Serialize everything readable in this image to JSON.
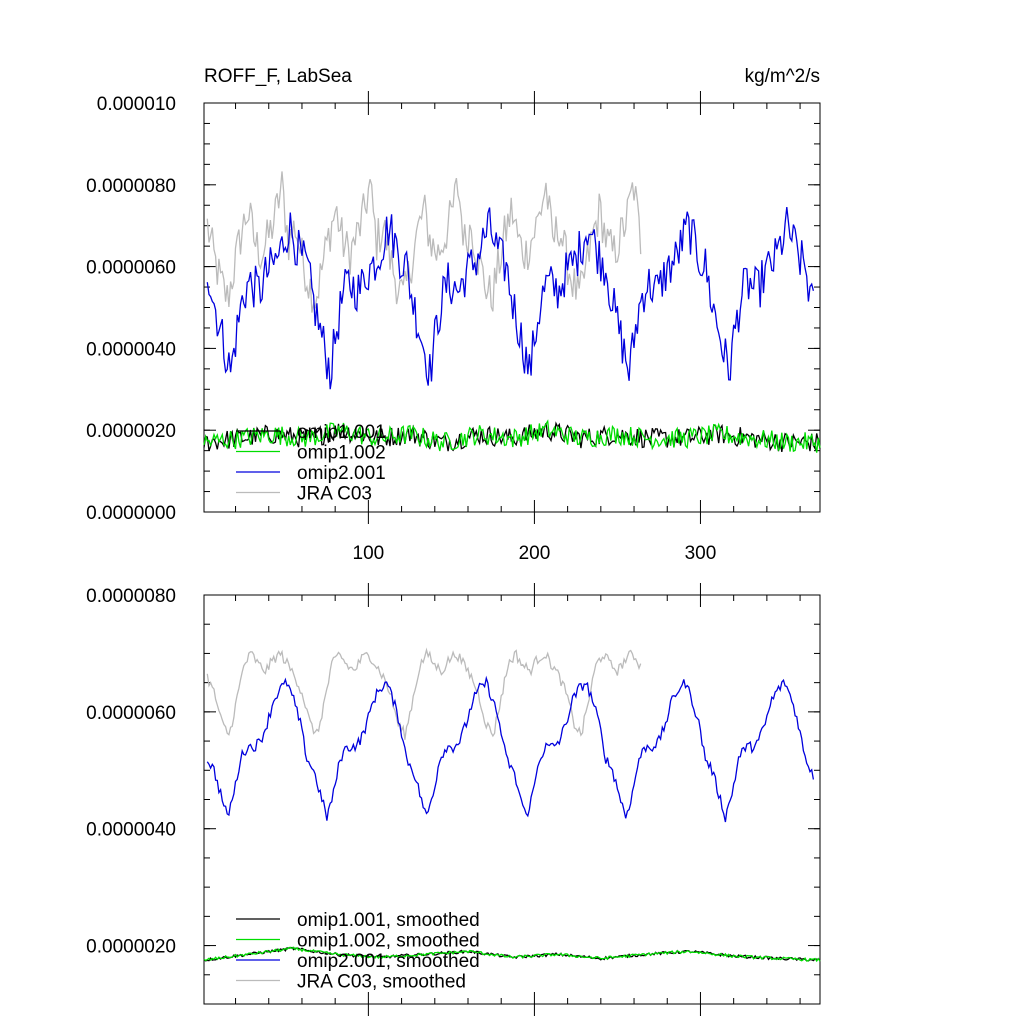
{
  "chart_data": [
    {
      "type": "line",
      "title": "ROFF_F, LabSea",
      "units": "kg/m^2/s",
      "xlim": [
        1,
        372
      ],
      "ylim": [
        0.0,
        1e-05
      ],
      "x_ticks": [
        100,
        200,
        300
      ],
      "x_tick_labels": [
        "100",
        "200",
        "300"
      ],
      "y_ticks": [
        0.0,
        2e-06,
        4e-06,
        6e-06,
        8e-06,
        1e-05
      ],
      "y_tick_labels": [
        "0.0000000",
        "0.0000020",
        "0.0000040",
        "0.0000060",
        "0.0000080",
        "0.000010"
      ],
      "legend_position": "bottom-left",
      "series": [
        {
          "name": "omip1.001",
          "color": "#000000",
          "data": "hidden-behind-omip1.002",
          "values": [
            1.7e-06,
            1.8e-06,
            1.9e-06,
            1.8e-06,
            2e-06,
            1.8e-06,
            1.9e-06,
            1.7e-06,
            1.9e-06,
            1.8e-06,
            2e-06,
            1.8e-06,
            1.9e-06,
            1.8e-06,
            1.8e-06,
            1.9e-06,
            1.8e-06,
            1.7e-06
          ]
        },
        {
          "name": "omip1.002",
          "color": "#00dd00",
          "values": [
            1.7e-06,
            1.8e-06,
            1.9e-06,
            1.8e-06,
            2e-06,
            1.8e-06,
            1.9e-06,
            1.7e-06,
            1.9e-06,
            1.8e-06,
            2e-06,
            1.8e-06,
            1.9e-06,
            1.8e-06,
            1.8e-06,
            1.9e-06,
            1.8e-06,
            1.7e-06
          ]
        },
        {
          "name": "omip2.001",
          "color": "#0000dd",
          "cycle_length": 60,
          "cycle_profile": [
            6e-06,
            5.2e-06,
            4.6e-06,
            4e-06,
            3.4e-06,
            4.4e-06,
            5.2e-06,
            5.6e-06,
            5.5e-06,
            5.4e-06,
            5.8e-06,
            6e-06,
            6.2e-06,
            6.6e-06,
            7e-06,
            6.6e-06,
            6.2e-06
          ],
          "n_points": 366
        },
        {
          "name": "JRA C03",
          "color": "#bbbbbb",
          "cycle_length": 53,
          "cycle_profile": [
            7e-06,
            6.2e-06,
            5.6e-06,
            5.2e-06,
            6e-06,
            6.8e-06,
            7.4e-06,
            6.6e-06,
            6.3e-06,
            6.7e-06,
            7.2e-06,
            8e-06,
            6.6e-06
          ],
          "n_points": 262
        }
      ]
    },
    {
      "type": "line",
      "xlim": [
        1,
        372
      ],
      "ylim": [
        1e-06,
        8e-06
      ],
      "y_ticks": [
        2e-06,
        4e-06,
        6e-06,
        8e-06
      ],
      "y_tick_labels": [
        "0.0000020",
        "0.0000040",
        "0.0000060",
        "0.0000080"
      ],
      "legend_position": "bottom-left",
      "series": [
        {
          "name": "omip1.001, smoothed",
          "color": "#000000",
          "values": [
            1.75e-06,
            1.85e-06,
            1.95e-06,
            1.85e-06,
            1.8e-06,
            1.85e-06,
            1.9e-06,
            1.8e-06,
            1.85e-06,
            1.78e-06,
            1.85e-06,
            1.9e-06,
            1.82e-06,
            1.78e-06
          ]
        },
        {
          "name": "omip1.002, smoothed",
          "color": "#00dd00",
          "values": [
            1.75e-06,
            1.85e-06,
            1.95e-06,
            1.85e-06,
            1.8e-06,
            1.85e-06,
            1.9e-06,
            1.8e-06,
            1.85e-06,
            1.78e-06,
            1.85e-06,
            1.9e-06,
            1.82e-06,
            1.78e-06
          ]
        },
        {
          "name": "omip2.001, smoothed",
          "color": "#0000dd",
          "cycle_length": 60,
          "cycle_profile": [
            5.2e-06,
            5e-06,
            4.6e-06,
            4.2e-06,
            4.6e-06,
            5.2e-06,
            5.4e-06,
            5.4e-06,
            5.5e-06,
            5.8e-06,
            6.2e-06,
            6.4e-06,
            6.5e-06,
            6.2e-06,
            5.8e-06
          ],
          "n_points": 366
        },
        {
          "name": "JRA C03, smoothed",
          "color": "#bbbbbb",
          "cycle_length": 53,
          "cycle_profile": [
            6.6e-06,
            6.3e-06,
            5.8e-06,
            5.6e-06,
            6.2e-06,
            6.8e-06,
            7e-06,
            6.8e-06,
            6.7e-06,
            6.9e-06,
            7e-06,
            6.8e-06
          ],
          "n_points": 262
        }
      ]
    }
  ]
}
